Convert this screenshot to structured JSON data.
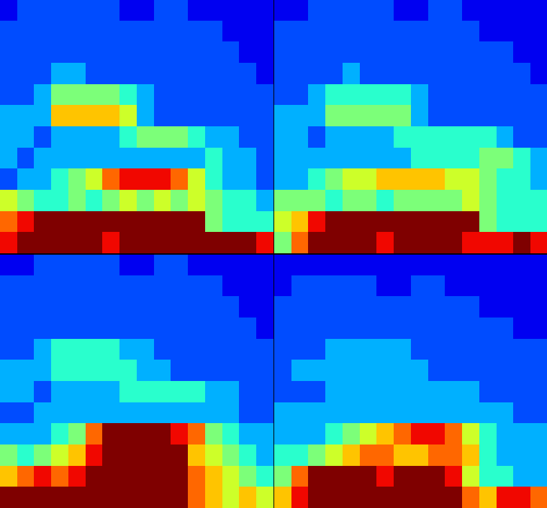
{
  "chart_data": [
    {
      "type": "heatmap",
      "tick_labels": false,
      "color_range": [
        0,
        10
      ],
      "cells": [
        [
          1,
          2,
          2,
          2,
          2,
          2,
          2,
          1,
          1,
          2,
          2,
          1,
          1,
          1,
          1,
          1
        ],
        [
          2,
          2,
          2,
          2,
          2,
          2,
          2,
          2,
          2,
          2,
          2,
          2,
          2,
          1,
          1,
          1
        ],
        [
          2,
          2,
          2,
          2,
          2,
          2,
          2,
          2,
          2,
          2,
          2,
          2,
          2,
          2,
          1,
          1
        ],
        [
          2,
          2,
          2,
          3,
          3,
          2,
          2,
          2,
          2,
          2,
          2,
          2,
          2,
          2,
          2,
          1
        ],
        [
          2,
          2,
          3,
          5,
          5,
          5,
          5,
          4,
          3,
          2,
          2,
          2,
          2,
          2,
          2,
          2
        ],
        [
          3,
          3,
          3,
          7,
          7,
          7,
          7,
          6,
          3,
          2,
          2,
          2,
          2,
          2,
          2,
          2
        ],
        [
          3,
          3,
          2,
          3,
          3,
          3,
          3,
          4,
          5,
          5,
          5,
          4,
          3,
          3,
          2,
          2
        ],
        [
          3,
          2,
          3,
          3,
          3,
          3,
          3,
          3,
          3,
          3,
          3,
          3,
          4,
          3,
          3,
          2
        ],
        [
          2,
          3,
          3,
          4,
          5,
          6,
          8,
          9,
          9,
          9,
          8,
          6,
          4,
          3,
          3,
          2
        ],
        [
          6,
          5,
          4,
          4,
          5,
          4,
          5,
          6,
          5,
          6,
          5,
          6,
          5,
          4,
          4,
          3
        ],
        [
          8,
          9,
          10,
          10,
          10,
          10,
          10,
          10,
          10,
          10,
          10,
          10,
          5,
          4,
          4,
          4
        ],
        [
          9,
          10,
          10,
          10,
          10,
          10,
          9,
          10,
          10,
          10,
          10,
          10,
          10,
          10,
          10,
          9
        ]
      ]
    },
    {
      "type": "heatmap",
      "tick_labels": false,
      "color_range": [
        0,
        10
      ],
      "cells": [
        [
          1,
          1,
          2,
          2,
          2,
          2,
          2,
          1,
          1,
          2,
          2,
          1,
          1,
          1,
          1,
          1
        ],
        [
          2,
          2,
          2,
          2,
          2,
          2,
          2,
          2,
          2,
          2,
          2,
          2,
          1,
          1,
          1,
          1
        ],
        [
          2,
          2,
          2,
          2,
          2,
          2,
          2,
          2,
          2,
          2,
          2,
          2,
          2,
          2,
          1,
          1
        ],
        [
          2,
          2,
          2,
          2,
          3,
          2,
          2,
          2,
          2,
          2,
          2,
          2,
          2,
          2,
          2,
          1
        ],
        [
          2,
          2,
          3,
          4,
          4,
          4,
          4,
          4,
          3,
          2,
          2,
          2,
          2,
          2,
          2,
          2
        ],
        [
          3,
          3,
          3,
          5,
          5,
          5,
          5,
          5,
          3,
          2,
          2,
          2,
          2,
          2,
          2,
          2
        ],
        [
          3,
          3,
          2,
          3,
          3,
          3,
          3,
          4,
          4,
          4,
          4,
          4,
          4,
          3,
          2,
          2
        ],
        [
          3,
          3,
          3,
          3,
          3,
          3,
          3,
          3,
          4,
          4,
          4,
          4,
          5,
          5,
          4,
          3
        ],
        [
          3,
          3,
          4,
          5,
          6,
          6,
          7,
          7,
          7,
          7,
          6,
          6,
          5,
          4,
          4,
          3
        ],
        [
          5,
          5,
          5,
          4,
          5,
          5,
          4,
          5,
          5,
          5,
          5,
          6,
          5,
          4,
          4,
          4
        ],
        [
          6,
          7,
          9,
          10,
          10,
          10,
          10,
          10,
          10,
          10,
          10,
          10,
          5,
          4,
          4,
          4
        ],
        [
          5,
          8,
          10,
          10,
          10,
          10,
          9,
          10,
          10,
          10,
          10,
          9,
          9,
          9,
          10,
          9
        ]
      ]
    },
    {
      "type": "heatmap",
      "tick_labels": false,
      "color_range": [
        0,
        10
      ],
      "cells": [
        [
          1,
          1,
          2,
          2,
          2,
          2,
          2,
          1,
          1,
          2,
          2,
          1,
          1,
          1,
          1,
          1
        ],
        [
          2,
          2,
          2,
          2,
          2,
          2,
          2,
          2,
          2,
          2,
          2,
          2,
          2,
          1,
          1,
          1
        ],
        [
          2,
          2,
          2,
          2,
          2,
          2,
          2,
          2,
          2,
          2,
          2,
          2,
          2,
          2,
          1,
          1
        ],
        [
          2,
          2,
          2,
          2,
          2,
          2,
          2,
          2,
          2,
          2,
          2,
          2,
          2,
          2,
          2,
          1
        ],
        [
          2,
          2,
          3,
          4,
          4,
          4,
          4,
          3,
          3,
          2,
          2,
          2,
          2,
          2,
          2,
          2
        ],
        [
          3,
          3,
          3,
          4,
          4,
          4,
          4,
          4,
          3,
          3,
          2,
          2,
          2,
          2,
          2,
          2
        ],
        [
          3,
          3,
          2,
          3,
          3,
          3,
          3,
          4,
          4,
          4,
          4,
          4,
          3,
          3,
          2,
          2
        ],
        [
          2,
          2,
          3,
          3,
          3,
          3,
          3,
          3,
          3,
          3,
          3,
          3,
          3,
          3,
          2,
          2
        ],
        [
          3,
          3,
          3,
          4,
          5,
          8,
          10,
          10,
          10,
          10,
          9,
          8,
          5,
          4,
          3,
          3
        ],
        [
          5,
          4,
          5,
          6,
          7,
          9,
          10,
          10,
          10,
          10,
          10,
          7,
          6,
          5,
          4,
          3
        ],
        [
          7,
          8,
          9,
          8,
          9,
          10,
          10,
          10,
          10,
          10,
          10,
          8,
          7,
          6,
          5,
          4
        ],
        [
          10,
          10,
          10,
          10,
          10,
          10,
          10,
          10,
          10,
          10,
          10,
          8,
          7,
          6,
          7,
          6
        ]
      ]
    },
    {
      "type": "heatmap",
      "tick_labels": false,
      "color_range": [
        0,
        10
      ],
      "cells": [
        [
          1,
          1,
          1,
          1,
          1,
          1,
          1,
          1,
          1,
          1,
          1,
          1,
          1,
          1,
          1,
          1
        ],
        [
          1,
          2,
          2,
          2,
          2,
          2,
          1,
          1,
          2,
          2,
          1,
          1,
          1,
          1,
          1,
          1
        ],
        [
          2,
          2,
          2,
          2,
          2,
          2,
          2,
          2,
          2,
          2,
          2,
          2,
          1,
          1,
          1,
          1
        ],
        [
          2,
          2,
          2,
          2,
          2,
          2,
          2,
          2,
          2,
          2,
          2,
          2,
          2,
          2,
          1,
          1
        ],
        [
          2,
          2,
          2,
          3,
          3,
          3,
          3,
          3,
          2,
          2,
          2,
          2,
          2,
          2,
          2,
          2
        ],
        [
          2,
          3,
          3,
          3,
          3,
          3,
          3,
          3,
          3,
          2,
          2,
          2,
          2,
          2,
          2,
          2
        ],
        [
          2,
          2,
          2,
          3,
          3,
          3,
          3,
          3,
          3,
          3,
          3,
          3,
          2,
          2,
          2,
          2
        ],
        [
          3,
          3,
          3,
          3,
          3,
          3,
          3,
          3,
          3,
          3,
          3,
          3,
          3,
          3,
          2,
          2
        ],
        [
          3,
          3,
          3,
          4,
          5,
          6,
          7,
          8,
          9,
          9,
          8,
          6,
          4,
          3,
          3,
          3
        ],
        [
          4,
          4,
          5,
          6,
          7,
          8,
          8,
          7,
          7,
          8,
          8,
          7,
          4,
          3,
          3,
          3
        ],
        [
          5,
          8,
          10,
          10,
          10,
          10,
          9,
          10,
          10,
          10,
          9,
          6,
          4,
          4,
          3,
          3
        ],
        [
          7,
          9,
          10,
          10,
          10,
          10,
          10,
          10,
          10,
          10,
          10,
          8,
          7,
          9,
          9,
          8
        ]
      ]
    }
  ]
}
